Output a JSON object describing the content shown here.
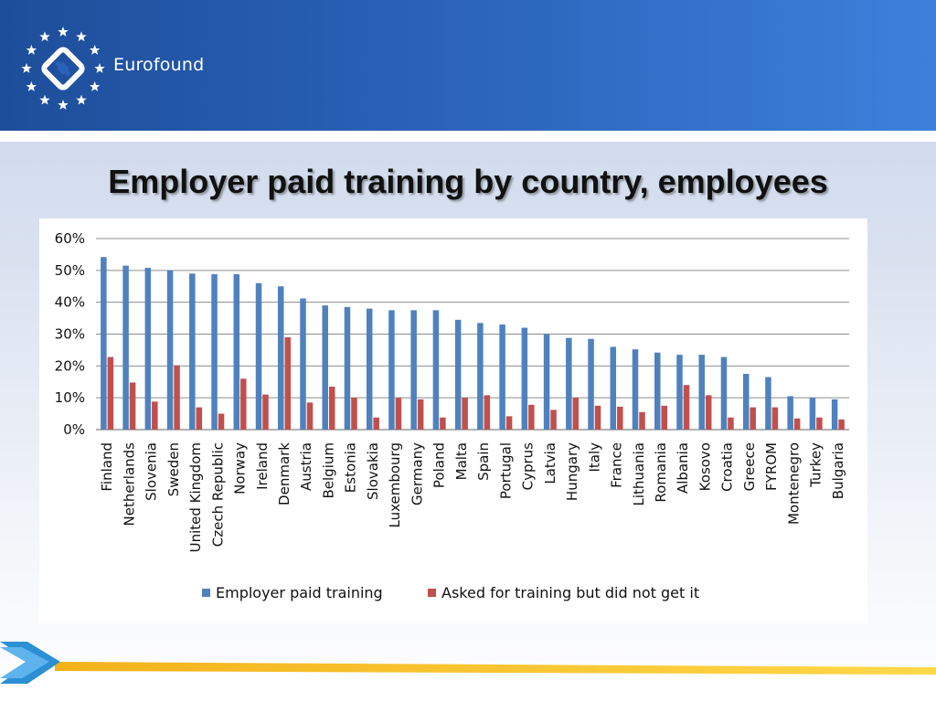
{
  "brand": {
    "name": "Eurofound",
    "icon": "eurofound-star-logo-icon"
  },
  "title": "Employer paid training by country, employees",
  "colors": {
    "series1": "#4f81bd",
    "series2": "#c0504d",
    "gridline": "#8c8c8c",
    "header": "#2a62b8"
  },
  "chart_data": {
    "type": "bar",
    "title": "",
    "xlabel": "",
    "ylabel": "",
    "ylim": [
      0,
      60
    ],
    "yticks": [
      "0%",
      "10%",
      "20%",
      "30%",
      "40%",
      "50%",
      "60%"
    ],
    "grid": true,
    "legend_position": "bottom",
    "categories": [
      "Finland",
      "Netherlands",
      "Slovenia",
      "Sweden",
      "United Kingdom",
      "Czech Republic",
      "Norway",
      "Ireland",
      "Denmark",
      "Austria",
      "Belgium",
      "Estonia",
      "Slovakia",
      "Luxembourg",
      "Germany",
      "Poland",
      "Malta",
      "Spain",
      "Portugal",
      "Cyprus",
      "Latvia",
      "Hungary",
      "Italy",
      "France",
      "Lithuania",
      "Romania",
      "Albania",
      "Kosovo",
      "Croatia",
      "Greece",
      "FYROM",
      "Montenegro",
      "Turkey",
      "Bulgaria"
    ],
    "series": [
      {
        "name": "Employer paid training",
        "color": "#4f81bd",
        "values": [
          54.2,
          51.5,
          50.8,
          50.0,
          49.0,
          48.8,
          48.8,
          46.0,
          45.0,
          41.2,
          39.0,
          38.5,
          38.0,
          37.5,
          37.5,
          37.5,
          34.5,
          33.5,
          33.0,
          32.0,
          30.0,
          28.8,
          28.5,
          26.0,
          25.2,
          24.2,
          23.5,
          23.5,
          22.8,
          17.5,
          16.5,
          10.5,
          10.0,
          9.5
        ]
      },
      {
        "name": "Asked for training but did not get it",
        "color": "#c0504d",
        "values": [
          22.8,
          14.8,
          8.8,
          20.2,
          7.0,
          5.0,
          16.0,
          11.0,
          29.0,
          8.5,
          13.5,
          10.0,
          3.8,
          10.0,
          9.5,
          3.8,
          10.0,
          10.8,
          4.2,
          7.8,
          6.2,
          10.0,
          7.5,
          7.2,
          5.5,
          7.5,
          14.0,
          10.8,
          3.8,
          7.0,
          7.0,
          3.5,
          3.8,
          3.2
        ]
      }
    ]
  }
}
